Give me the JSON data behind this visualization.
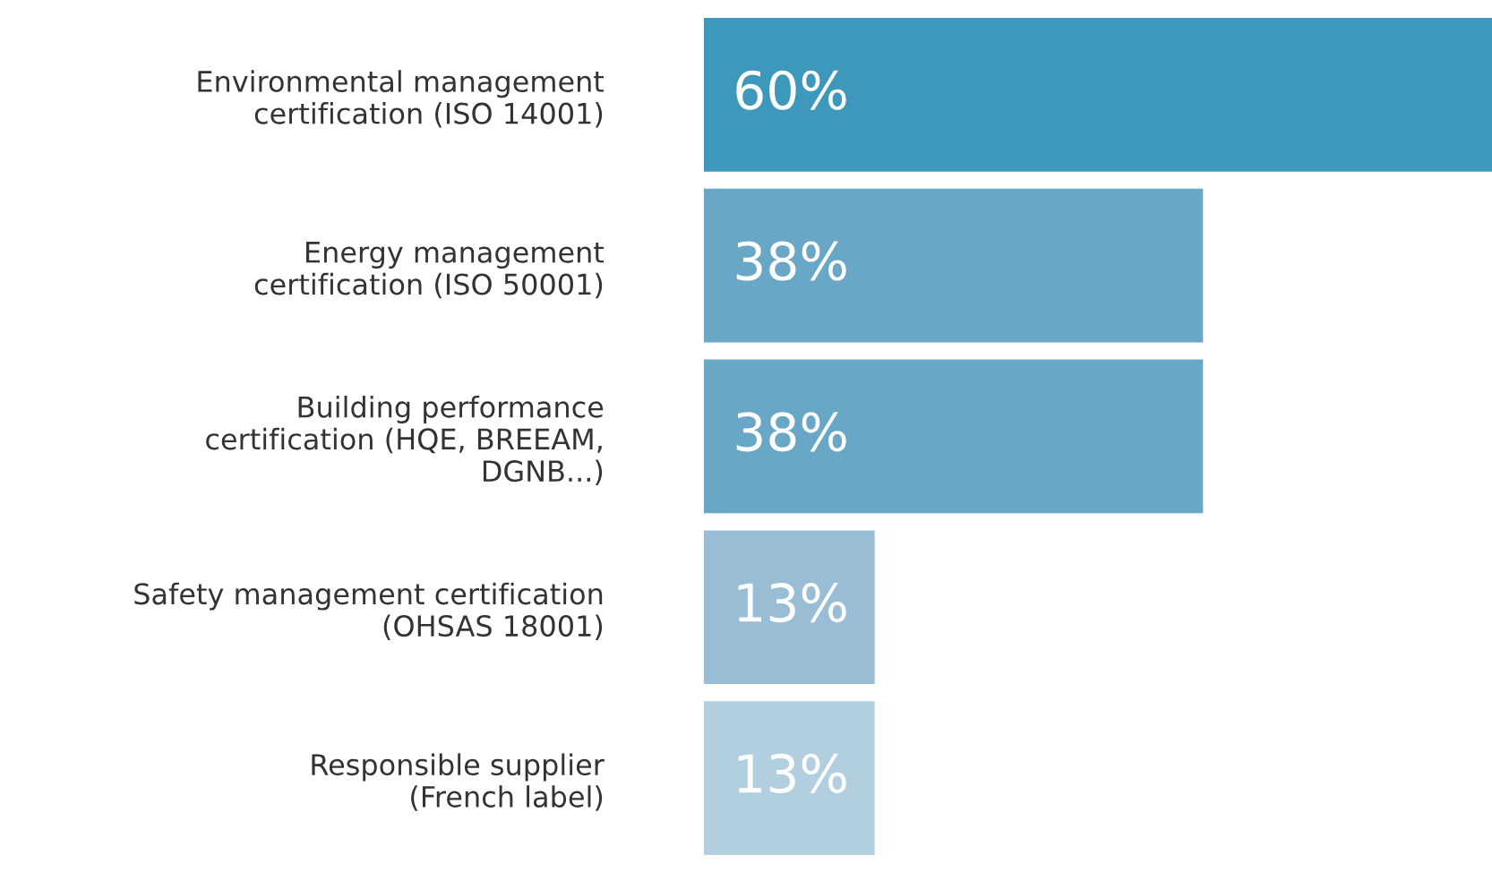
{
  "chart_data": {
    "type": "bar",
    "orientation": "horizontal",
    "categories": [
      "Environmental management\ncertification (ISO 14001)",
      "Energy management\ncertification (ISO 50001)",
      "Building performance\ncertification (HQE, BREEAM,\nDGNB...)",
      "Safety management certification\n(OHSAS 18001)",
      "Responsible supplier\n(French label)"
    ],
    "values": [
      60,
      38,
      38,
      13,
      13
    ],
    "value_labels": [
      "60%",
      "38%",
      "38%",
      "13%",
      "13%"
    ],
    "colors": [
      "#3d98bb",
      "#68a7c5",
      "#68a7c5",
      "#98bdd5",
      "#b2cfe0"
    ],
    "grid": false,
    "legend": false
  }
}
